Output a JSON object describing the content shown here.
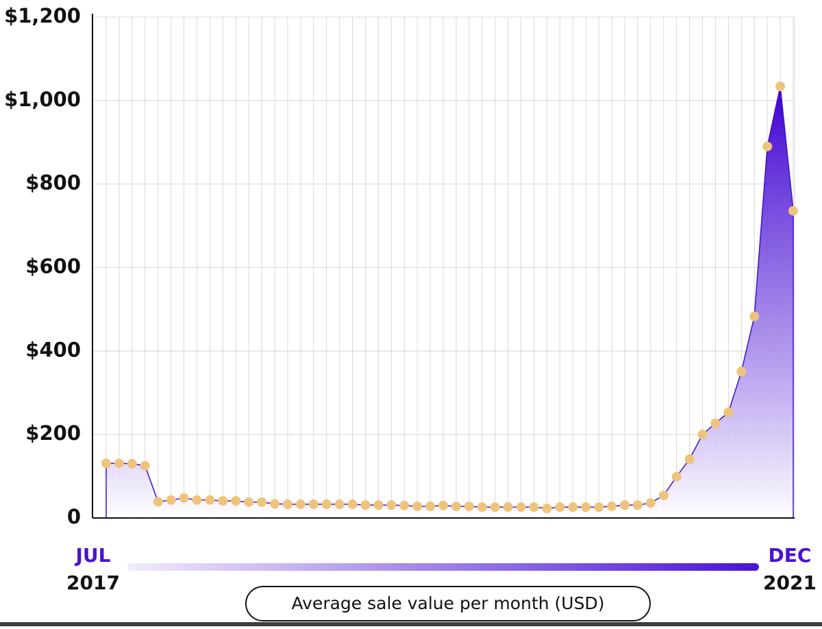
{
  "chart_data": {
    "type": "area",
    "categories": [
      null,
      null,
      null,
      null,
      null,
      null,
      null,
      null,
      null,
      null,
      null,
      null,
      null,
      null,
      null,
      null,
      null,
      null,
      null,
      null,
      null,
      null,
      null,
      null,
      null,
      null,
      null,
      null,
      null,
      null,
      null,
      null,
      null,
      null,
      null,
      null,
      null,
      null,
      null,
      null,
      null,
      null,
      null,
      null,
      null,
      null,
      null,
      null,
      null,
      null,
      null,
      null,
      null,
      null
    ],
    "values": [
      131,
      131,
      130,
      125,
      39,
      43,
      48,
      43,
      43,
      41,
      41,
      38,
      38,
      34,
      33,
      33,
      33,
      33,
      33,
      33,
      31,
      31,
      31,
      30,
      28,
      28,
      30,
      28,
      28,
      26,
      26,
      26,
      26,
      26,
      23,
      26,
      26,
      26,
      26,
      28,
      31,
      31,
      36,
      54,
      99,
      141,
      200,
      227,
      253,
      351,
      483,
      890,
      1034,
      736
    ],
    "color": "#3d10c8",
    "marker_color": "#eec47c",
    "ylim": [
      0,
      1200
    ],
    "yticks": [
      0,
      {
        "value": 200,
        "label": "$200"
      },
      {
        "value": 400,
        "label": "$400"
      },
      {
        "value": 600,
        "label": "$600"
      },
      {
        "value": 800,
        "label": "$800"
      },
      {
        "value": 1000,
        "label": "$1,000"
      },
      {
        "value": 1200,
        "label": "$1,200"
      }
    ],
    "grid": true,
    "x_start": {
      "month": "JUL",
      "year": "2017"
    },
    "x_end": {
      "month": "DEC",
      "year": "2021"
    },
    "caption": "Average sale value per month (USD)"
  }
}
